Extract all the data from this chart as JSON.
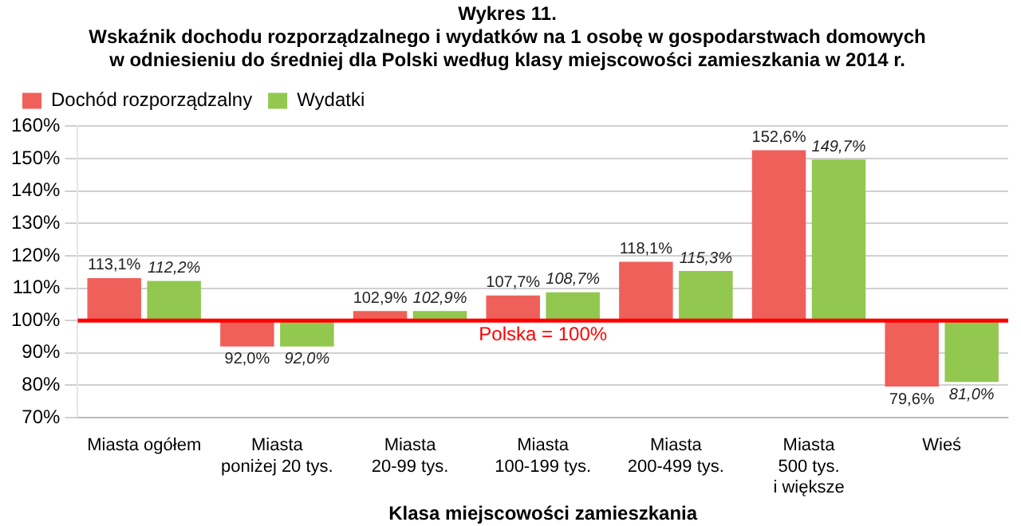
{
  "chart_data": {
    "type": "bar",
    "title": "Wykres 11.",
    "subtitle": "Wskaźnik dochodu rozporządzalnego i wydatków na 1 osobę w gospodarstwach domowych\nw odniesieniu do średniej dla Polski według klasy miejscowości zamieszkania w 2014 r.",
    "xlabel": "Klasa miejscowości zamieszkania",
    "categories": [
      "Miasta ogółem",
      "Miasta\nponiżej 20 tys.",
      "Miasta\n20-99 tys.",
      "Miasta\n100-199 tys.",
      "Miasta\n200-499 tys.",
      "Miasta\n500 tys.\ni większe",
      "Wieś"
    ],
    "series": [
      {
        "name": "Dochód rozporządzalny",
        "color": "#f0605a",
        "base": [
          100,
          100,
          100,
          100,
          100,
          100,
          100
        ],
        "values": [
          13.1,
          -8.0,
          2.9,
          7.7,
          18.1,
          52.6,
          -20.4
        ],
        "value_labels": [
          "113,1%",
          "92,0%",
          "102,9%",
          "107,7%",
          "118,1%",
          "152,6%",
          "79,6%"
        ]
      },
      {
        "name": "Wydatki",
        "color": "#92c84f",
        "base": [
          100,
          100,
          100,
          100,
          100,
          100,
          100
        ],
        "values": [
          12.2,
          -8.0,
          2.9,
          8.7,
          15.3,
          49.7,
          -19.0
        ],
        "value_labels": [
          "112,2%",
          "92,0%",
          "102,9%",
          "108,7%",
          "115,3%",
          "149,7%",
          "81,0%"
        ]
      }
    ],
    "ylim": [
      70,
      160
    ],
    "yticks": [
      {
        "value": 70,
        "label": "70%"
      },
      {
        "value": 80,
        "label": "80%"
      },
      {
        "value": 90,
        "label": "90%"
      },
      {
        "value": 100,
        "label": "100%"
      },
      {
        "value": 110,
        "label": "110%"
      },
      {
        "value": 120,
        "label": "120%"
      },
      {
        "value": 130,
        "label": "130%"
      },
      {
        "value": 140,
        "label": "140%"
      },
      {
        "value": 150,
        "label": "150%"
      },
      {
        "value": 160,
        "label": "160%"
      }
    ],
    "grid": "y",
    "legend": "top left",
    "ref_lines": [
      {
        "axis": "y",
        "value": 100,
        "label": "Polska = 100%",
        "color": "#ff0000"
      }
    ]
  }
}
